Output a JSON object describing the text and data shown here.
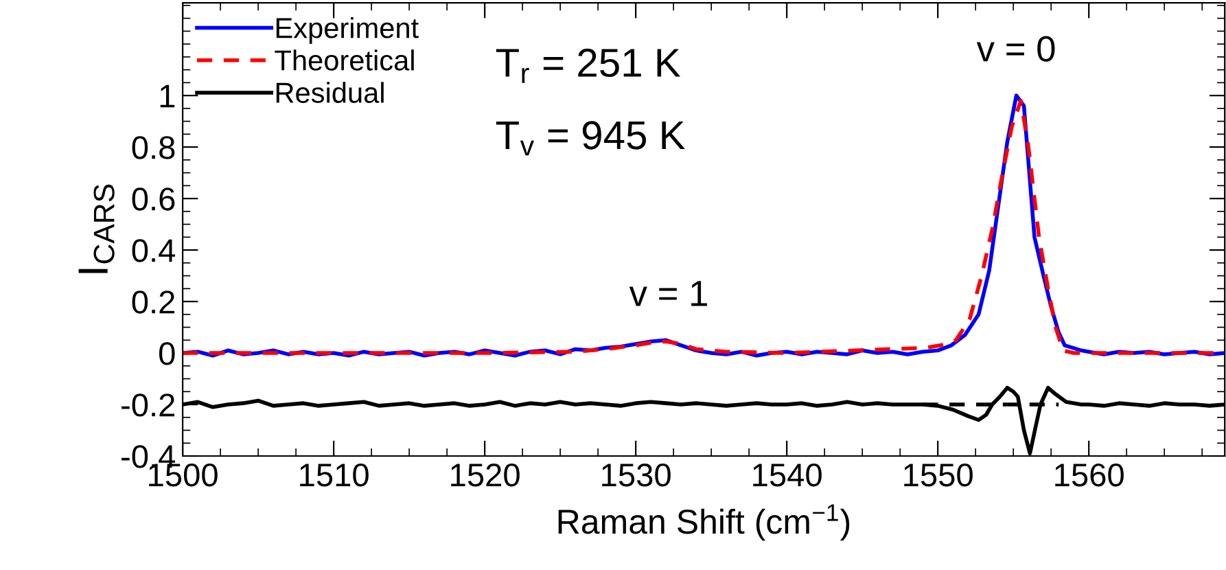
{
  "chart_data": {
    "type": "line",
    "xlabel": "Raman Shift (cm$^{−1}$)",
    "ylabel": "I$_{CARS}$",
    "xlim": [
      1500,
      1569
    ],
    "xticks": [
      1500,
      1510,
      1520,
      1530,
      1540,
      1550,
      1560
    ],
    "ylim": [
      -0.4,
      1.36
    ],
    "yticks": [
      -0.4,
      -0.2,
      0,
      0.2,
      0.4,
      0.6,
      0.8,
      1
    ],
    "legend": "top left",
    "grid": false,
    "annotations": [
      "T$_{r}$ = 251 K",
      "T$_{v}$ = 945 K",
      {
        "text": "v = 1",
        "x": 1532.2,
        "y": 0.05
      },
      {
        "text": "v = 0",
        "x": 1555.2,
        "y": 1.0
      }
    ],
    "series": [
      {
        "name": "Experiment",
        "color": "#0000ff",
        "line_style": "solid",
        "x": [
          1500,
          1501,
          1502,
          1503,
          1504,
          1505,
          1506,
          1507,
          1508,
          1509,
          1510,
          1511,
          1512,
          1513,
          1514,
          1515,
          1516,
          1517,
          1518,
          1519,
          1520,
          1521,
          1522,
          1523,
          1524,
          1525,
          1526,
          1527,
          1528,
          1529,
          1530,
          1531,
          1532,
          1533,
          1534,
          1535,
          1536,
          1537,
          1538,
          1539,
          1540,
          1541,
          1542,
          1543,
          1544,
          1545,
          1546,
          1547,
          1548,
          1549,
          1550,
          1550.9,
          1551.8,
          1552.7,
          1553.4,
          1554.0,
          1554.6,
          1555.2,
          1555.7,
          1556.4,
          1557.0,
          1557.5,
          1558.0,
          1558.4,
          1559.5,
          1560,
          1561,
          1562,
          1563,
          1564,
          1565,
          1566,
          1567,
          1568,
          1569
        ],
        "values": [
          0,
          0.005,
          -0.01,
          0.01,
          -0.005,
          0,
          0.01,
          -0.005,
          0.005,
          -0.005,
          0,
          -0.01,
          0.005,
          -0.005,
          0,
          0.005,
          -0.01,
          0,
          0.005,
          -0.005,
          0.01,
          0,
          -0.01,
          0.005,
          0.01,
          -0.005,
          0.015,
          0.01,
          0.02,
          0.025,
          0.035,
          0.045,
          0.05,
          0.03,
          0.01,
          0,
          -0.005,
          0.005,
          -0.01,
          0,
          0.005,
          -0.005,
          0.005,
          0,
          -0.005,
          0.01,
          0,
          0.005,
          -0.005,
          0.005,
          0.01,
          0.03,
          0.07,
          0.15,
          0.32,
          0.57,
          0.82,
          1.0,
          0.96,
          0.45,
          0.3,
          0.18,
          0.08,
          0.03,
          0.01,
          0.005,
          -0.005,
          0.005,
          0,
          0.005,
          -0.005,
          0,
          0.005,
          -0.005,
          0
        ]
      },
      {
        "name": "Theoretical",
        "color": "#ff0000",
        "line_style": "dashed",
        "x": [
          1500,
          1510,
          1520,
          1526,
          1528,
          1530,
          1531,
          1532,
          1533,
          1534,
          1536,
          1540,
          1549.1,
          1550.2,
          1551.2,
          1552.1,
          1552.9,
          1553.6,
          1554.2,
          1554.9,
          1555.5,
          1556.0,
          1556.7,
          1557.3,
          1557.8,
          1558.3,
          1559,
          1569
        ],
        "values": [
          0,
          0,
          0,
          0.005,
          0.015,
          0.03,
          0.04,
          0.045,
          0.035,
          0.015,
          0.005,
          0,
          0.02,
          0.03,
          0.05,
          0.13,
          0.3,
          0.48,
          0.67,
          0.88,
          0.98,
          0.8,
          0.45,
          0.25,
          0.1,
          0.01,
          0,
          0
        ]
      },
      {
        "name": "Residual",
        "color": "#000000",
        "line_style": "solid",
        "x": [
          1500,
          1501,
          1502,
          1503,
          1504,
          1505,
          1506,
          1507,
          1508,
          1509,
          1510,
          1511,
          1512,
          1513,
          1514,
          1515,
          1516,
          1517,
          1518,
          1519,
          1520,
          1521,
          1522,
          1523,
          1524,
          1525,
          1526,
          1527,
          1528,
          1529,
          1530,
          1531,
          1532,
          1533,
          1534,
          1535,
          1536,
          1537,
          1538,
          1539,
          1540,
          1541,
          1542,
          1543,
          1544,
          1545,
          1546,
          1547,
          1548,
          1549,
          1550,
          1551,
          1552,
          1552.7,
          1553.2,
          1553.6,
          1554.1,
          1554.6,
          1555.0,
          1555.3,
          1555.7,
          1556.1,
          1556.5,
          1556.8,
          1557.3,
          1557.8,
          1558.5,
          1559.5,
          1560,
          1561,
          1562,
          1563,
          1564,
          1565,
          1566,
          1567,
          1568,
          1569
        ],
        "values": [
          -0.2,
          -0.19,
          -0.21,
          -0.2,
          -0.195,
          -0.185,
          -0.205,
          -0.2,
          -0.195,
          -0.205,
          -0.2,
          -0.195,
          -0.19,
          -0.205,
          -0.2,
          -0.195,
          -0.205,
          -0.2,
          -0.195,
          -0.205,
          -0.2,
          -0.19,
          -0.205,
          -0.195,
          -0.2,
          -0.19,
          -0.2,
          -0.195,
          -0.2,
          -0.205,
          -0.195,
          -0.19,
          -0.195,
          -0.2,
          -0.195,
          -0.2,
          -0.205,
          -0.2,
          -0.195,
          -0.2,
          -0.2,
          -0.195,
          -0.205,
          -0.2,
          -0.19,
          -0.2,
          -0.195,
          -0.2,
          -0.2,
          -0.2,
          -0.205,
          -0.22,
          -0.245,
          -0.26,
          -0.24,
          -0.2,
          -0.17,
          -0.135,
          -0.15,
          -0.17,
          -0.3,
          -0.39,
          -0.28,
          -0.2,
          -0.135,
          -0.16,
          -0.19,
          -0.2,
          -0.2,
          -0.205,
          -0.195,
          -0.2,
          -0.205,
          -0.195,
          -0.2,
          -0.2,
          -0.205,
          -0.2
        ]
      },
      {
        "color": "#000000",
        "line_style": "dashed",
        "x": [
          1549,
          1558
        ],
        "values": [
          -0.2,
          -0.2
        ]
      }
    ]
  }
}
